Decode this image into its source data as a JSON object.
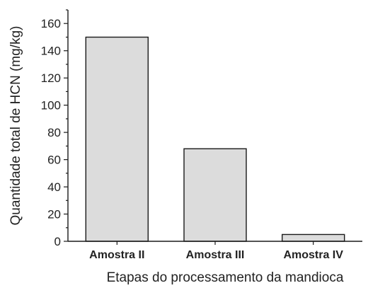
{
  "chart_data": {
    "type": "bar",
    "title": "",
    "xlabel": "Etapas do processamento da mandioca",
    "ylabel": "Quantidade total de HCN (mg/kg)",
    "categories": [
      "Amostra II",
      "Amostra III",
      "Amostra IV"
    ],
    "values": [
      150,
      68,
      5
    ],
    "ylim": [
      0,
      170
    ],
    "yticks": [
      0,
      20,
      40,
      60,
      80,
      100,
      120,
      140,
      160
    ],
    "grid": false,
    "legend": "none",
    "bar_color": "#dcdcdc",
    "bar_edge_color": "#1a1a1a"
  }
}
